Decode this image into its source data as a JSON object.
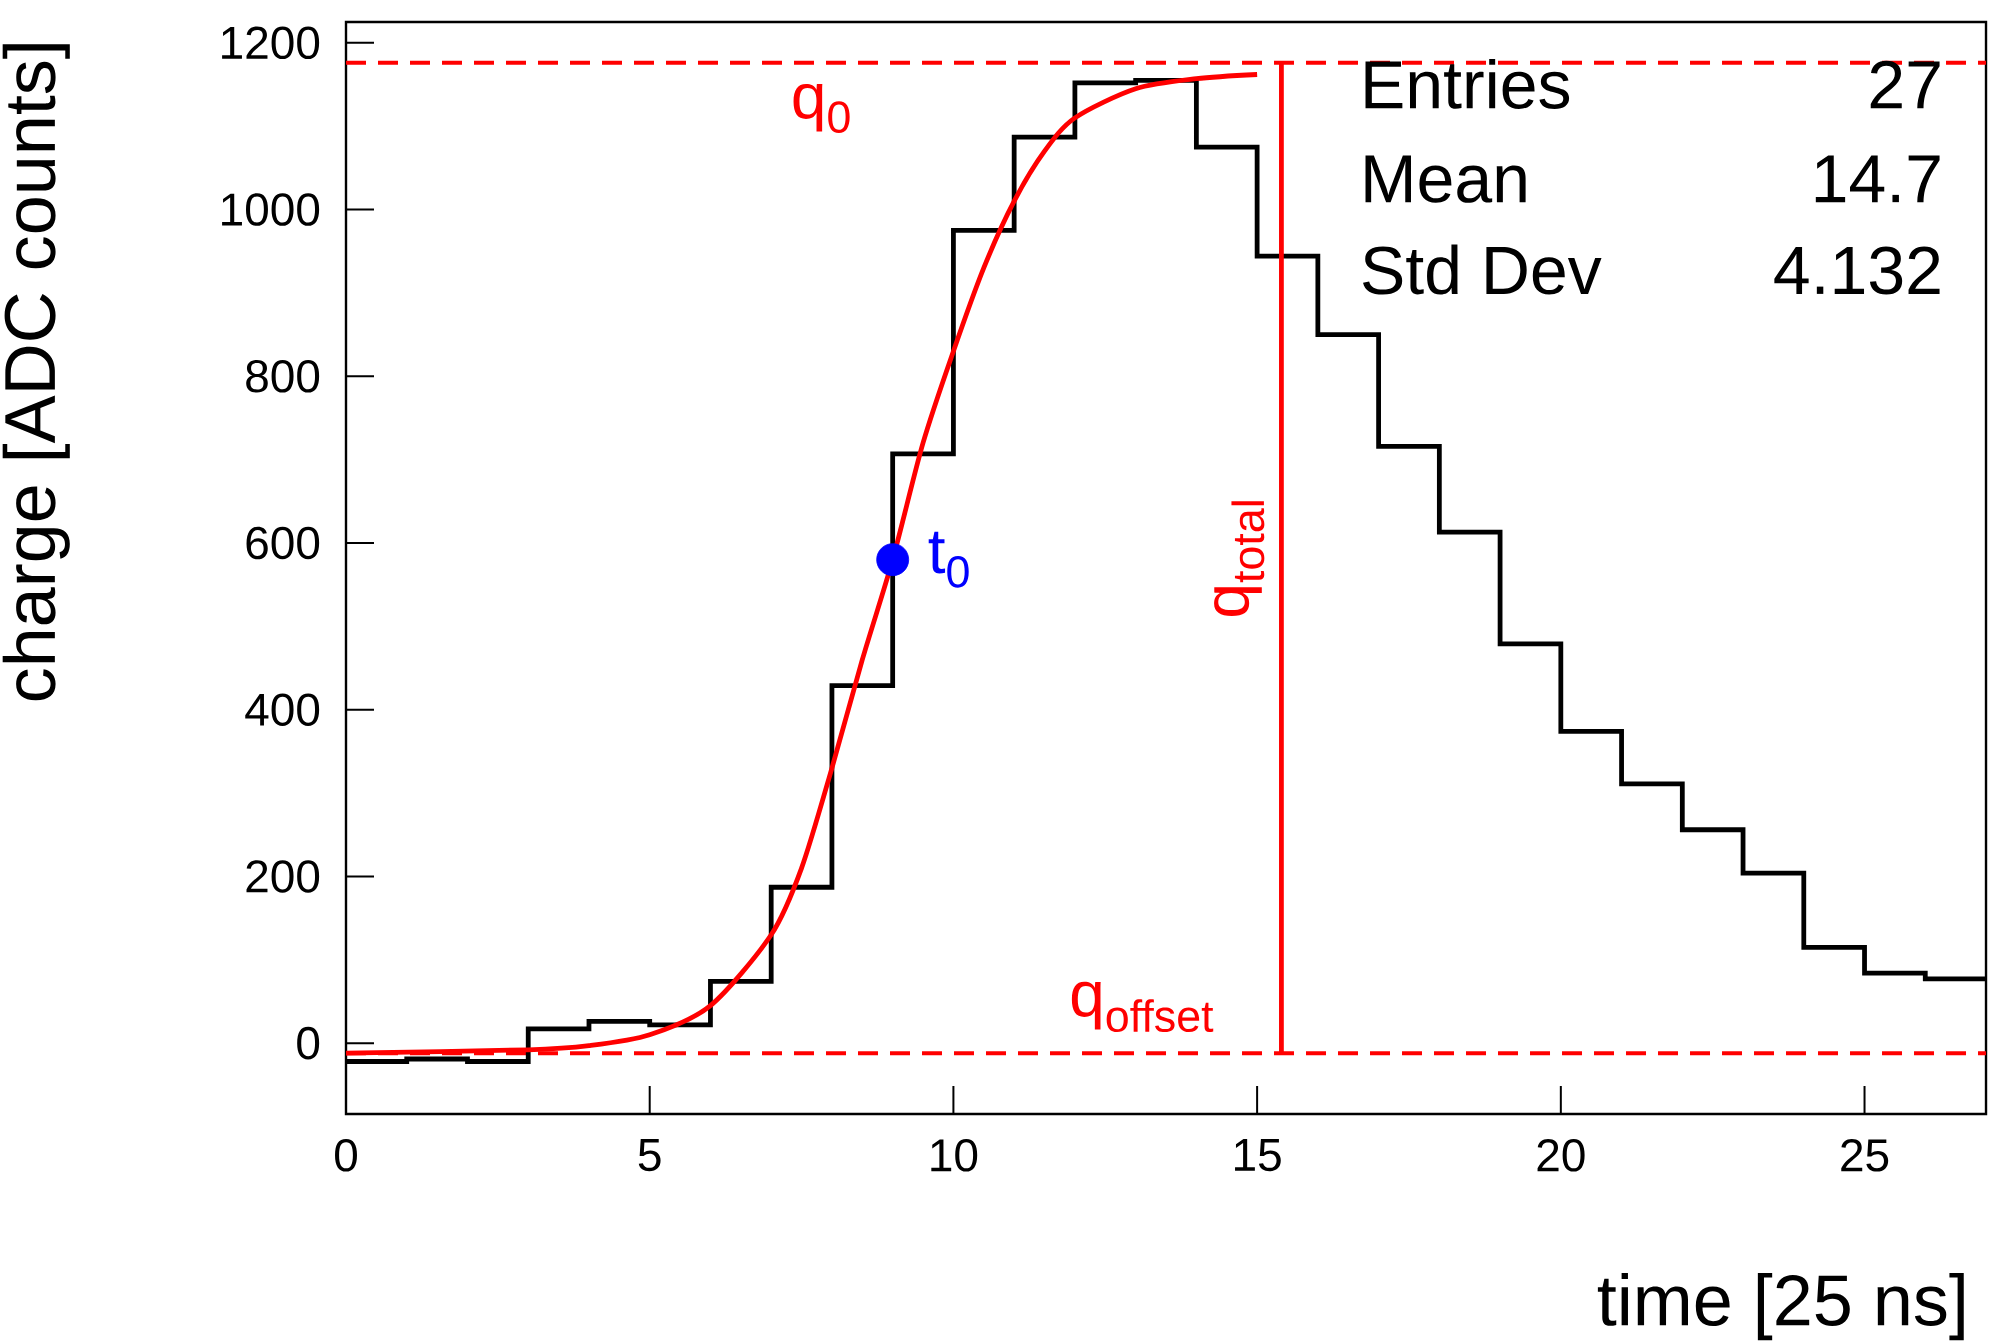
{
  "chart_data": {
    "type": "histogram",
    "xlabel": "time [25 ns]",
    "ylabel": "charge [ADC counts]",
    "bins": [
      0,
      1,
      2,
      3,
      4,
      5,
      6,
      7,
      8,
      9,
      10,
      11,
      12,
      13,
      14,
      15,
      16,
      17,
      18,
      19,
      20,
      21,
      22,
      23,
      24,
      25,
      26,
      27
    ],
    "values": [
      -22,
      -19,
      -22,
      17,
      26,
      22,
      74,
      187,
      429,
      707,
      975,
      1087,
      1152,
      1155,
      1075,
      944,
      850,
      716,
      613,
      479,
      374,
      311,
      256,
      204,
      115,
      84,
      77
    ],
    "color": "#000000",
    "series": [
      {
        "type": "line",
        "color": "#ff0000",
        "marker": "none",
        "x": [
          0,
          3,
          4,
          5,
          6,
          7,
          7.5,
          8,
          8.5,
          9,
          9.5,
          10,
          10.5,
          11,
          11.5,
          12,
          13,
          14,
          15
        ],
        "values": [
          -12,
          -8,
          -3,
          10,
          45,
          130,
          210,
          330,
          460,
          580,
          720,
          830,
          930,
          1010,
          1070,
          1110,
          1145,
          1157,
          1162
        ]
      },
      {
        "type": "line",
        "name": "q$_{total}$",
        "color": "#ff0000",
        "marker": "none",
        "x": [
          15.4,
          15.4
        ],
        "values": [
          -12,
          1176
        ]
      },
      {
        "type": "scatter",
        "name": "t$_{0}$",
        "color": "#0000ff",
        "marker": "circle",
        "x": [
          9
        ],
        "values": [
          580
        ]
      }
    ],
    "ref_lines": [
      {
        "axis": "y",
        "value": -12,
        "label": "q$_{offset}$",
        "color": "#ff0000",
        "line_style": "dashed"
      },
      {
        "axis": "y",
        "value": 1176,
        "label": "q$_{0}$",
        "color": "#ff0000",
        "line_style": "dashed"
      }
    ],
    "annotations": [
      "Entries",
      "27",
      "Mean",
      "14.7",
      "Std Dev",
      "4.132"
    ],
    "xlim": [
      0,
      27
    ],
    "xticks": [
      0,
      5,
      10,
      15,
      20,
      25
    ],
    "ylim": [
      -85,
      1225
    ],
    "yticks": [
      0,
      200,
      400,
      600,
      800,
      1000,
      1200
    ]
  }
}
